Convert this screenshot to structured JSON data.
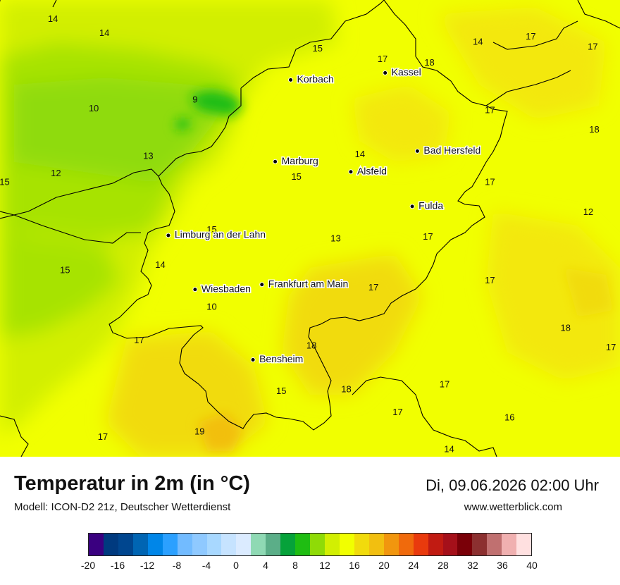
{
  "map": {
    "cities": [
      {
        "name": "Kassel",
        "lon": 9.497,
        "lat": 51.315
      },
      {
        "name": "Korbach",
        "lon": 8.872,
        "lat": 51.275
      },
      {
        "name": "Bad Hersfeld",
        "lon": 9.71,
        "lat": 50.87
      },
      {
        "name": "Marburg",
        "lon": 8.77,
        "lat": 50.81
      },
      {
        "name": "Alsfeld",
        "lon": 9.27,
        "lat": 50.752
      },
      {
        "name": "Fulda",
        "lon": 9.676,
        "lat": 50.555
      },
      {
        "name": "Limburg an der Lahn",
        "lon": 8.063,
        "lat": 50.39
      },
      {
        "name": "Frankfurt am Main",
        "lon": 8.682,
        "lat": 50.11
      },
      {
        "name": "Wiesbaden",
        "lon": 8.24,
        "lat": 50.082
      },
      {
        "name": "Bensheim",
        "lon": 8.623,
        "lat": 49.682
      }
    ],
    "temperature_labels": [
      {
        "text": "14",
        "lon": 7.3,
        "lat": 51.62
      },
      {
        "text": "14",
        "lon": 7.64,
        "lat": 51.54
      },
      {
        "text": "15",
        "lon": 9.05,
        "lat": 51.45
      },
      {
        "text": "17",
        "lon": 9.48,
        "lat": 51.39
      },
      {
        "text": "18",
        "lon": 9.79,
        "lat": 51.37
      },
      {
        "text": "14",
        "lon": 10.11,
        "lat": 51.49
      },
      {
        "text": "17",
        "lon": 10.46,
        "lat": 51.52
      },
      {
        "text": "17",
        "lon": 10.87,
        "lat": 51.46
      },
      {
        "text": "10",
        "lon": 7.57,
        "lat": 51.11
      },
      {
        "text": "9",
        "lon": 8.24,
        "lat": 51.16
      },
      {
        "text": "17",
        "lon": 10.19,
        "lat": 51.1
      },
      {
        "text": "18",
        "lon": 10.88,
        "lat": 50.99
      },
      {
        "text": "13",
        "lon": 7.93,
        "lat": 50.84
      },
      {
        "text": "14",
        "lon": 9.33,
        "lat": 50.85
      },
      {
        "text": "15",
        "lon": 8.91,
        "lat": 50.72
      },
      {
        "text": "17",
        "lon": 10.19,
        "lat": 50.69
      },
      {
        "text": "12",
        "lon": 7.32,
        "lat": 50.74
      },
      {
        "text": "15",
        "lon": 6.98,
        "lat": 50.69
      },
      {
        "text": "12",
        "lon": 10.84,
        "lat": 50.52
      },
      {
        "text": "15",
        "lon": 8.35,
        "lat": 50.42
      },
      {
        "text": "13",
        "lon": 9.17,
        "lat": 50.37
      },
      {
        "text": "17",
        "lon": 9.78,
        "lat": 50.38
      },
      {
        "text": "14",
        "lon": 8.01,
        "lat": 50.22
      },
      {
        "text": "15",
        "lon": 7.38,
        "lat": 50.19
      },
      {
        "text": "17",
        "lon": 10.19,
        "lat": 50.13
      },
      {
        "text": "17",
        "lon": 9.42,
        "lat": 50.09
      },
      {
        "text": "10",
        "lon": 8.35,
        "lat": 49.98
      },
      {
        "text": "18",
        "lon": 10.69,
        "lat": 49.86
      },
      {
        "text": "17",
        "lon": 7.87,
        "lat": 49.79
      },
      {
        "text": "18",
        "lon": 9.01,
        "lat": 49.76
      },
      {
        "text": "17",
        "lon": 10.99,
        "lat": 49.75
      },
      {
        "text": "17",
        "lon": 9.89,
        "lat": 49.54
      },
      {
        "text": "18",
        "lon": 9.24,
        "lat": 49.51
      },
      {
        "text": "15",
        "lon": 8.81,
        "lat": 49.5
      },
      {
        "text": "17",
        "lon": 9.58,
        "lat": 49.38
      },
      {
        "text": "16",
        "lon": 10.32,
        "lat": 49.35
      },
      {
        "text": "19",
        "lon": 8.27,
        "lat": 49.27
      },
      {
        "text": "17",
        "lon": 7.63,
        "lat": 49.24
      },
      {
        "text": "14",
        "lon": 9.92,
        "lat": 49.17
      }
    ],
    "view": {
      "lon_min": 6.95,
      "lon_max": 11.05,
      "lat_min": 49.13,
      "lat_max": 51.73
    }
  },
  "footer": {
    "title": "Temperatur in 2m (in °C)",
    "model": "Modell: ICON-D2 21z, Deutscher Wetterdienst",
    "datetime": "Di, 09.06.2026 02:00 Uhr",
    "website": "www.wetterblick.com"
  },
  "legend": {
    "colors": [
      "#3a0080",
      "#003a7f",
      "#00468f",
      "#0065b3",
      "#0086e8",
      "#2ba0ff",
      "#72bbff",
      "#8fc9ff",
      "#a8d8ff",
      "#c6e3ff",
      "#dbebff",
      "#8fd9b4",
      "#5bae88",
      "#06a23a",
      "#1fbd12",
      "#8fdb07",
      "#d2ef02",
      "#f1ff00",
      "#f1db0c",
      "#f2bf10",
      "#f1960e",
      "#f06a0c",
      "#e93a0d",
      "#c11b12",
      "#a5101a",
      "#7a0008",
      "#8c3030",
      "#c07070",
      "#f0b0b0",
      "#ffe0e0"
    ],
    "ticks": [
      "-20",
      "-16",
      "-12",
      "-8",
      "-4",
      "0",
      "4",
      "8",
      "12",
      "16",
      "20",
      "24",
      "28",
      "32",
      "36",
      "40"
    ],
    "min": -20,
    "max": 40
  }
}
